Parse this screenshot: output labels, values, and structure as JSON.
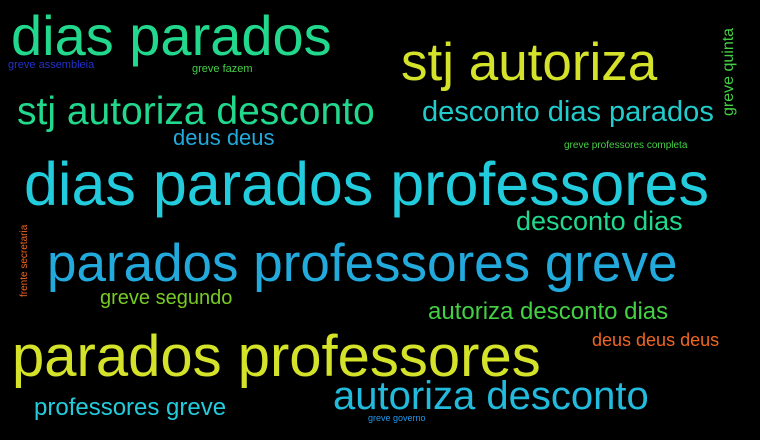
{
  "words": [
    {
      "text": "dias parados",
      "color": "#22d88c"
    },
    {
      "text": "stj autoriza",
      "color": "#d4e22a"
    },
    {
      "text": "greve assembleia",
      "color": "#2233cc"
    },
    {
      "text": "greve fazem",
      "color": "#44d044"
    },
    {
      "text": "greve quinta",
      "color": "#44d044"
    },
    {
      "text": "stj autoriza desconto",
      "color": "#22d88c"
    },
    {
      "text": "desconto dias parados",
      "color": "#22cccc"
    },
    {
      "text": "deus deus",
      "color": "#22aadd"
    },
    {
      "text": "greve professores completa",
      "color": "#44d044"
    },
    {
      "text": "dias parados professores",
      "color": "#22ccdd"
    },
    {
      "text": "desconto dias",
      "color": "#22d88c"
    },
    {
      "text": "frente secretaria",
      "color": "#ee6622"
    },
    {
      "text": "parados professores greve",
      "color": "#22aadd"
    },
    {
      "text": "greve segundo",
      "color": "#77cc22"
    },
    {
      "text": "autoriza desconto dias",
      "color": "#44d044"
    },
    {
      "text": "deus deus deus",
      "color": "#ee6622"
    },
    {
      "text": "parados professores",
      "color": "#d4e22a"
    },
    {
      "text": "autoriza desconto",
      "color": "#22bbdd"
    },
    {
      "text": "professores greve",
      "color": "#22ccdd"
    },
    {
      "text": "greve governo",
      "color": "#2299ee"
    }
  ]
}
